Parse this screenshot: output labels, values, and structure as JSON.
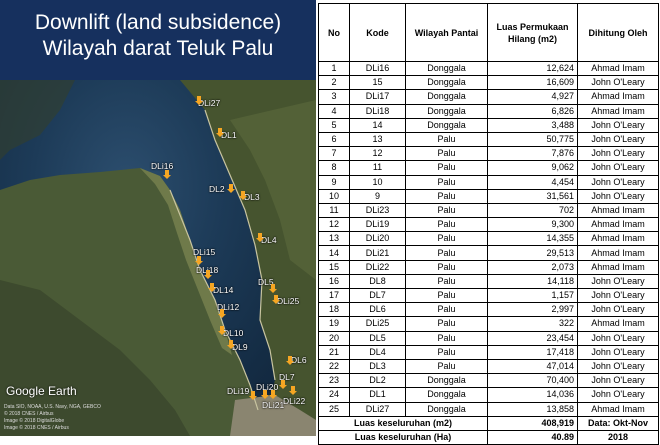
{
  "title": {
    "line1": "Downlift (land subsidence)",
    "line2": "Wilayah darat Teluk Palu"
  },
  "map": {
    "watermark": "Google Earth",
    "credits": [
      "Data SIO, NOAA, U.S. Navy, NGA, GEBCO",
      "© 2018 CNES / Airbus",
      "Image © 2018 DigitalGlobe",
      "Image © 2018 CNES / Airbus"
    ],
    "pins": [
      {
        "label": "DLi27"
      },
      {
        "label": "DL1"
      },
      {
        "label": "DLi16"
      },
      {
        "label": "DL2"
      },
      {
        "label": "DL3"
      },
      {
        "label": "DL4"
      },
      {
        "label": "DLi15"
      },
      {
        "label": "DLi18"
      },
      {
        "label": "DL14"
      },
      {
        "label": "DL5"
      },
      {
        "label": "DLi25"
      },
      {
        "label": "DLi12"
      },
      {
        "label": "DL10"
      },
      {
        "label": "DL9"
      },
      {
        "label": "DL6"
      },
      {
        "label": "DL7"
      },
      {
        "label": "DLi20"
      },
      {
        "label": "DLi19"
      },
      {
        "label": "DLi21"
      },
      {
        "label": "DLi22"
      }
    ]
  },
  "table": {
    "headers": [
      "No",
      "Kode",
      "Wilayah Pantai",
      "Luas Permukaan Hilang (m2)",
      "Dihitung Oleh"
    ],
    "rows": [
      {
        "no": "1",
        "kode": "DLi16",
        "wilayah": "Donggala",
        "luas": "12,624",
        "oleh": "Ahmad Imam"
      },
      {
        "no": "2",
        "kode": "15",
        "wilayah": "Donggala",
        "luas": "16,609",
        "oleh": "John O'Leary"
      },
      {
        "no": "3",
        "kode": "DLi17",
        "wilayah": "Donggala",
        "luas": "4,927",
        "oleh": "Ahmad Imam"
      },
      {
        "no": "4",
        "kode": "DLi18",
        "wilayah": "Donggala",
        "luas": "6,826",
        "oleh": "Ahmad Imam"
      },
      {
        "no": "5",
        "kode": "14",
        "wilayah": "Donggala",
        "luas": "3,488",
        "oleh": "John O'Leary"
      },
      {
        "no": "6",
        "kode": "13",
        "wilayah": "Palu",
        "luas": "50,775",
        "oleh": "John O'Leary"
      },
      {
        "no": "7",
        "kode": "12",
        "wilayah": "Palu",
        "luas": "7,876",
        "oleh": "John O'Leary"
      },
      {
        "no": "8",
        "kode": "11",
        "wilayah": "Palu",
        "luas": "9,062",
        "oleh": "John O'Leary"
      },
      {
        "no": "9",
        "kode": "10",
        "wilayah": "Palu",
        "luas": "4,454",
        "oleh": "John O'Leary"
      },
      {
        "no": "10",
        "kode": "9",
        "wilayah": "Palu",
        "luas": "31,561",
        "oleh": "John O'Leary"
      },
      {
        "no": "11",
        "kode": "DLi23",
        "wilayah": "Palu",
        "luas": "702",
        "oleh": "Ahmad Imam"
      },
      {
        "no": "12",
        "kode": "DLi19",
        "wilayah": "Palu",
        "luas": "9,300",
        "oleh": "Ahmad Imam"
      },
      {
        "no": "13",
        "kode": "DLi20",
        "wilayah": "Palu",
        "luas": "14,355",
        "oleh": "Ahmad Imam"
      },
      {
        "no": "14",
        "kode": "DLi21",
        "wilayah": "Palu",
        "luas": "29,513",
        "oleh": "Ahmad Imam"
      },
      {
        "no": "15",
        "kode": "DLi22",
        "wilayah": "Palu",
        "luas": "2,073",
        "oleh": "Ahmad Imam"
      },
      {
        "no": "16",
        "kode": "DL8",
        "wilayah": "Palu",
        "luas": "14,118",
        "oleh": "John O'Leary"
      },
      {
        "no": "17",
        "kode": "DL7",
        "wilayah": "Palu",
        "luas": "1,157",
        "oleh": "John O'Leary"
      },
      {
        "no": "18",
        "kode": "DL6",
        "wilayah": "Palu",
        "luas": "2,997",
        "oleh": "John O'Leary"
      },
      {
        "no": "19",
        "kode": "DLi25",
        "wilayah": "Palu",
        "luas": "322",
        "oleh": "Ahmad Imam"
      },
      {
        "no": "20",
        "kode": "DL5",
        "wilayah": "Palu",
        "luas": "23,454",
        "oleh": "John O'Leary"
      },
      {
        "no": "21",
        "kode": "DL4",
        "wilayah": "Palu",
        "luas": "17,418",
        "oleh": "John O'Leary"
      },
      {
        "no": "22",
        "kode": "DL3",
        "wilayah": "Palu",
        "luas": "47,014",
        "oleh": "John O'Leary"
      },
      {
        "no": "23",
        "kode": "DL2",
        "wilayah": "Donggala",
        "luas": "70,400",
        "oleh": "John O'Leary"
      },
      {
        "no": "24",
        "kode": "DL1",
        "wilayah": "Donggala",
        "luas": "14,036",
        "oleh": "John O'Leary"
      },
      {
        "no": "25",
        "kode": "DLi27",
        "wilayah": "Donggala",
        "luas": "13,858",
        "oleh": "Ahmad Imam"
      }
    ],
    "footer": {
      "total_m2_label": "Luas keseluruhan (m2)",
      "total_m2_value": "408,919",
      "total_ha_label": "Luas keseluruhan (Ha)",
      "total_ha_value": "40.89",
      "data_label_line1": "Data: Okt-Nov",
      "data_label_line2": "2018"
    }
  }
}
